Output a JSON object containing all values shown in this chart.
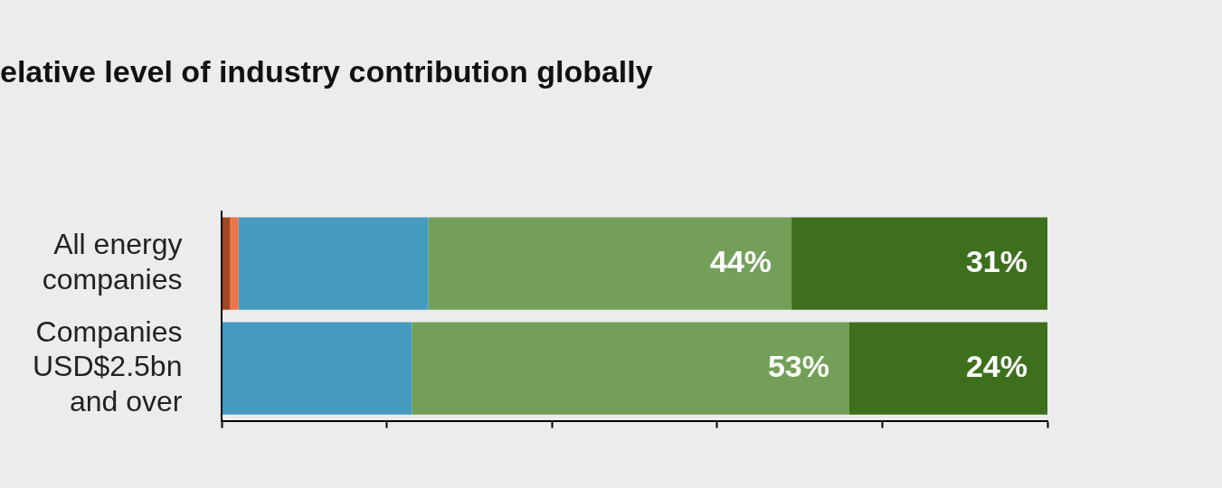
{
  "chart_data": {
    "type": "bar",
    "orientation": "horizontal",
    "stacked": true,
    "title": "elative level of industry contribution globally",
    "categories": [
      "All energy companies",
      "Companies USD$2.5bn and over"
    ],
    "series": [
      {
        "color": "#a0481f",
        "values": [
          1,
          null
        ]
      },
      {
        "color": "#ef7548",
        "values": [
          1,
          null
        ]
      },
      {
        "color": "#459bbf",
        "values": [
          23,
          23
        ]
      },
      {
        "color": "#739f58",
        "values": [
          44,
          53
        ],
        "value_labels": [
          "44%",
          "53%"
        ]
      },
      {
        "color": "#3d6f1d",
        "values": [
          31,
          24
        ],
        "value_labels": [
          "31%",
          "24%"
        ]
      }
    ],
    "xlim": [
      0,
      100
    ],
    "xticks": [
      {
        "value": 0,
        "label": null
      },
      {
        "value": 20,
        "label": null
      },
      {
        "value": 40,
        "label": null
      },
      {
        "value": 60,
        "label": null
      },
      {
        "value": 80,
        "label": null
      },
      {
        "value": 100,
        "label": null
      }
    ],
    "tick_labels": "y",
    "legend": false
  }
}
